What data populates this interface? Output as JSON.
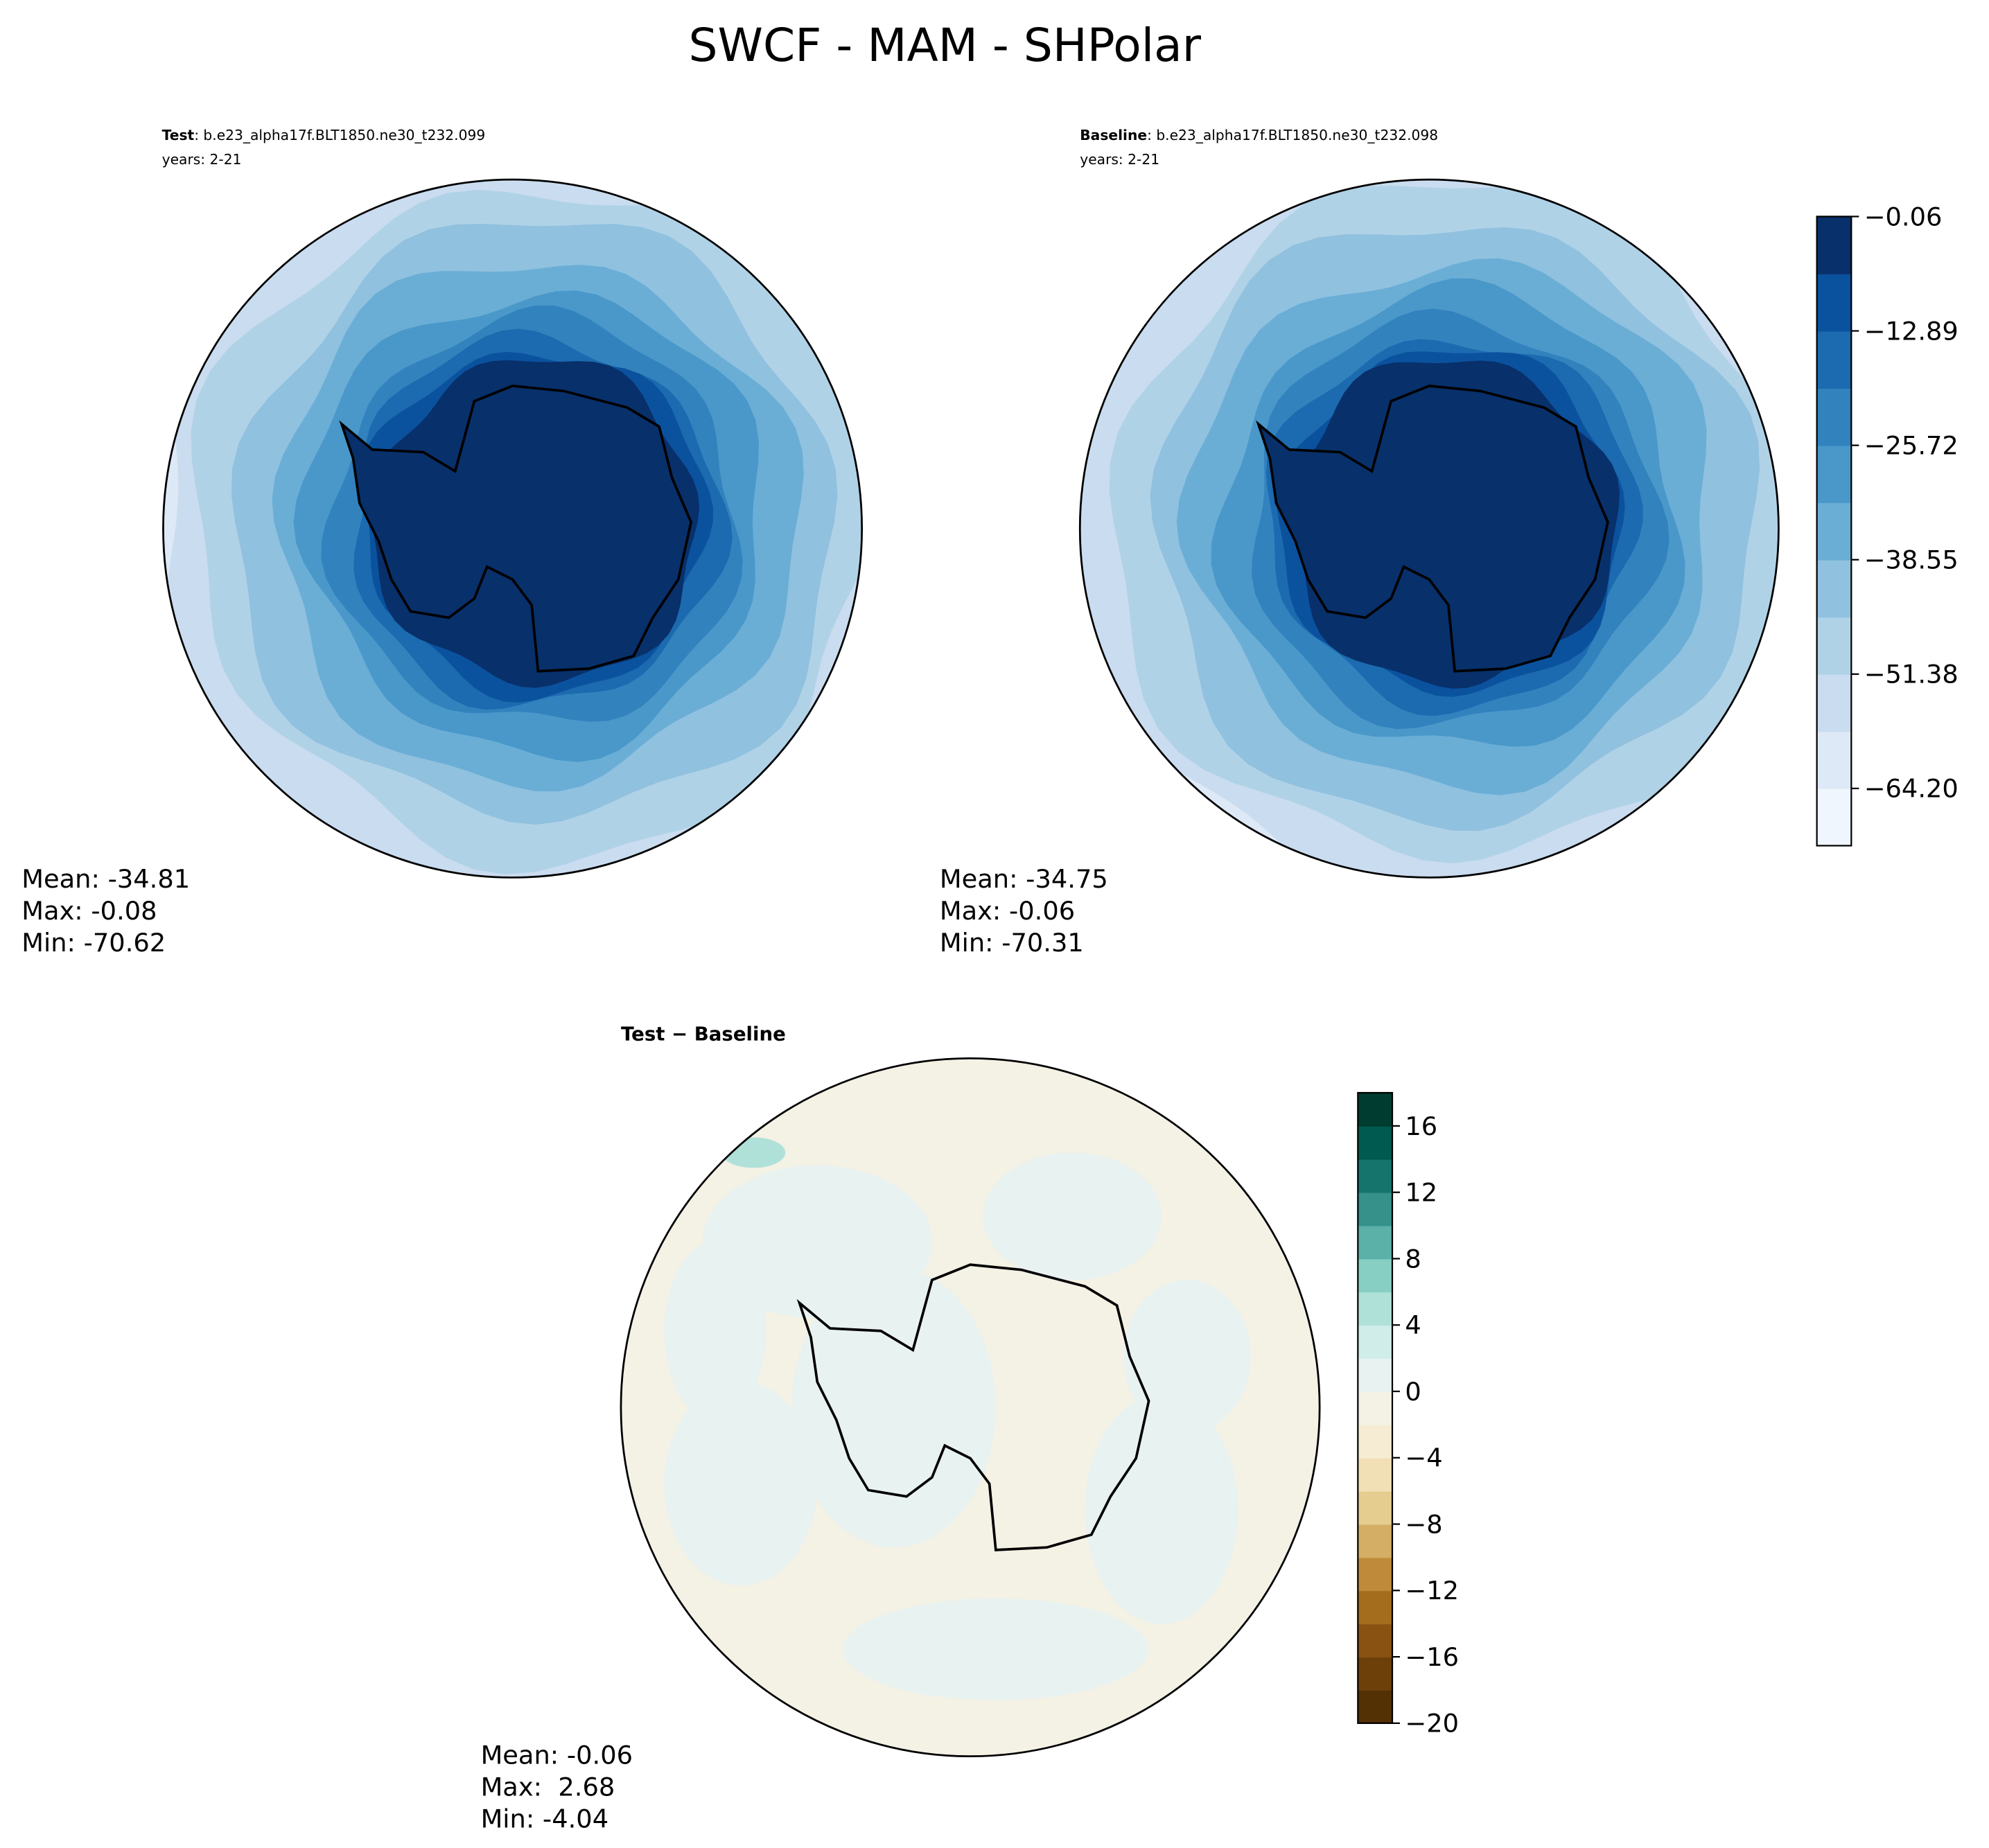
{
  "title": "SWCF - MAM - SHPolar",
  "panels": [
    {
      "label": "Test",
      "case": ": b.e23_alpha17f.BLT1850.ne30_t232.099",
      "years": "years: 2-21",
      "stats": [
        "Mean: -34.81",
        "Max: -0.08",
        "Min: -70.62"
      ]
    },
    {
      "label": "Baseline",
      "case": ": b.e23_alpha17f.BLT1850.ne30_t232.098",
      "years": "years: 2-21",
      "stats": [
        "Mean: -34.75",
        "Max: -0.06",
        "Min: -70.31"
      ]
    },
    {
      "label": "Test − Baseline",
      "stats": [
        "Mean: -0.06",
        "Max:  2.68",
        "Min: -4.04"
      ]
    }
  ],
  "colorbars": [
    {
      "lim": [
        -70.62,
        -0.06
      ],
      "ticks": [
        {
          "value": -0.06,
          "label": "−0.06"
        },
        {
          "value": -12.89,
          "label": "−12.89"
        },
        {
          "value": -25.72,
          "label": "−25.72"
        },
        {
          "value": -38.55,
          "label": "−38.55"
        },
        {
          "value": -51.38,
          "label": "−51.38"
        },
        {
          "value": -64.2,
          "label": "−64.20"
        }
      ],
      "colors": [
        "#f0f6fd",
        "#dde9f6",
        "#cadcef",
        "#b0d2e7",
        "#90c1df",
        "#6aaed6",
        "#4a98c9",
        "#3282be",
        "#1c6aaf",
        "#0b529e",
        "#08306b"
      ]
    },
    {
      "lim": [
        -20,
        18
      ],
      "ticks": [
        16,
        12,
        8,
        4,
        0,
        {
          "value": -4,
          "label": "−4"
        },
        {
          "value": -8,
          "label": "−8"
        },
        {
          "value": -12,
          "label": "−12"
        },
        {
          "value": -16,
          "label": "−16"
        },
        {
          "value": -20,
          "label": "−20"
        }
      ],
      "colors": [
        "#543005",
        "#6d400a",
        "#8a5212",
        "#a46c1d",
        "#bf8b3a",
        "#d4ae64",
        "#e5cc8f",
        "#f1e0b6",
        "#f5ecd3",
        "#f4f1e5",
        "#e8f2f1",
        "#d1ede9",
        "#b0e1d9",
        "#86cfc2",
        "#5bb1a7",
        "#35918a",
        "#15756c",
        "#015a4f",
        "#003c30"
      ]
    }
  ]
}
